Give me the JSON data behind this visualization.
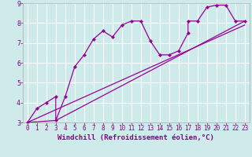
{
  "title": "",
  "xlabel": "Windchill (Refroidissement éolien,°C)",
  "bg_color": "#ceeaea",
  "grid_color": "#ffffff",
  "line_color": "#990099",
  "text_color": "#880088",
  "xlim": [
    -0.5,
    23.5
  ],
  "ylim": [
    3,
    9
  ],
  "xticks": [
    0,
    1,
    2,
    3,
    4,
    5,
    6,
    7,
    8,
    9,
    10,
    11,
    12,
    13,
    14,
    15,
    16,
    17,
    18,
    19,
    20,
    21,
    22,
    23
  ],
  "yticks": [
    3,
    4,
    5,
    6,
    7,
    8,
    9
  ],
  "line1_x": [
    0,
    1,
    2,
    3,
    3,
    4,
    5,
    6,
    7,
    8,
    9,
    10,
    11,
    12,
    13,
    14,
    15,
    16,
    17,
    17,
    18,
    19,
    20,
    21,
    22,
    23
  ],
  "line1_y": [
    3.0,
    3.7,
    4.0,
    4.3,
    3.1,
    4.3,
    5.8,
    6.4,
    7.2,
    7.6,
    7.3,
    7.9,
    8.1,
    8.1,
    7.1,
    6.4,
    6.4,
    6.6,
    7.5,
    8.1,
    8.1,
    8.8,
    8.9,
    8.9,
    8.1,
    8.1
  ],
  "line2_x": [
    0,
    3,
    23
  ],
  "line2_y": [
    3.0,
    3.1,
    8.1
  ],
  "line3_x": [
    0,
    23
  ],
  "line3_y": [
    3.0,
    7.9
  ],
  "xlabel_fontsize": 6.5,
  "tick_fontsize": 5.5
}
